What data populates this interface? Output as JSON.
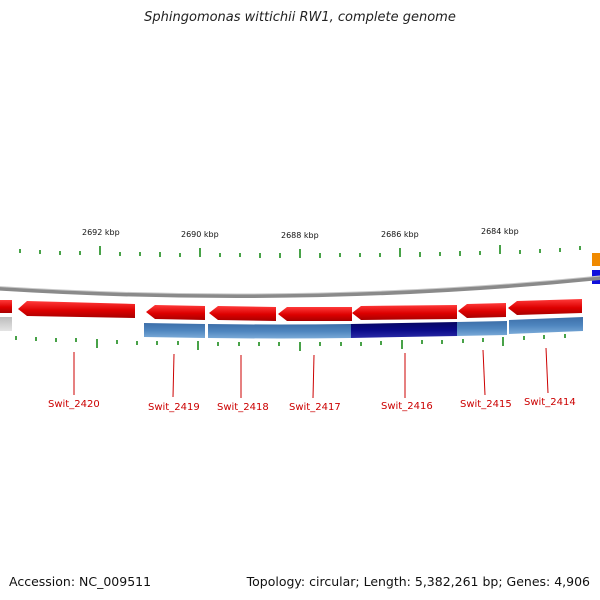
{
  "title": "Sphingomonas wittichii RW1, complete genome",
  "footer": {
    "accession": "Accession: NC_009511",
    "summary": "Topology: circular; Length: 5,382,261 bp; Genes: 4,906"
  },
  "colors": {
    "forward_gene": "#dd0000",
    "reverse_gene": "#4a7fb5",
    "highlight_gene": "#0a0a88",
    "backbone": "#8a8a8a",
    "ticks": "#1a8a1a",
    "label": "#cc0000"
  },
  "scale_labels": [
    "2692 kbp",
    "2690 kbp",
    "2688 kbp",
    "2686 kbp",
    "2684 kbp"
  ],
  "genes": [
    {
      "label": "Swit_2420"
    },
    {
      "label": "Swit_2419"
    },
    {
      "label": "Swit_2418"
    },
    {
      "label": "Swit_2417"
    },
    {
      "label": "Swit_2416"
    },
    {
      "label": "Swit_2415"
    },
    {
      "label": "Swit_2414"
    }
  ]
}
